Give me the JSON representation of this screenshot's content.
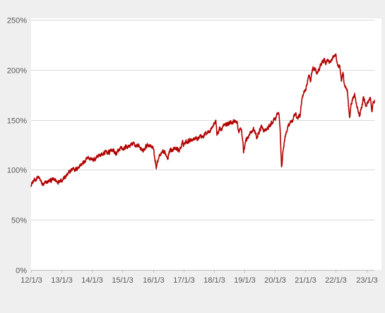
{
  "chart_data": {
    "type": "line",
    "title": "",
    "xlabel": "",
    "ylabel": "",
    "ylim": [
      0,
      250
    ],
    "yticks": [
      0,
      50,
      100,
      150,
      200,
      250
    ],
    "ytick_labels": [
      "0%",
      "50%",
      "100%",
      "150%",
      "200%",
      "250%"
    ],
    "xticks": [
      "2012-01-03",
      "2013-01-03",
      "2014-01-03",
      "2015-01-03",
      "2016-01-03",
      "2017-01-03",
      "2018-01-03",
      "2019-01-03",
      "2020-01-03",
      "2021-01-03",
      "2022-01-03",
      "2023-01-03"
    ],
    "xtick_labels": [
      "12/1/3",
      "13/1/3",
      "14/1/3",
      "15/1/3",
      "16/1/3",
      "17/1/3",
      "18/1/3",
      "19/1/3",
      "20/1/3",
      "21/1/3",
      "22/1/3",
      "23/1/3"
    ],
    "xlim": [
      "2012-01-03",
      "2023-04-10"
    ],
    "grid": "horizontal",
    "legend": "none",
    "line_color": "#b20000",
    "grid_color": "#d9d9d9",
    "series": [
      {
        "x": [
          "2012-01-03",
          "2012-02-15",
          "2012-03-20",
          "2012-04-20",
          "2012-05-10",
          "2012-06-05",
          "2012-07-15",
          "2012-08-20",
          "2012-09-15",
          "2012-10-20",
          "2012-11-15",
          "2012-12-20",
          "2013-01-03",
          "2013-02-20",
          "2013-03-25",
          "2013-04-25",
          "2013-05-25",
          "2013-06-25",
          "2013-08-01",
          "2013-09-10",
          "2013-10-20",
          "2013-11-25",
          "2014-01-03",
          "2014-02-05",
          "2014-03-10",
          "2014-04-15",
          "2014-05-20",
          "2014-06-25",
          "2014-07-31",
          "2014-08-05",
          "2014-09-10",
          "2014-10-15",
          "2014-11-20",
          "2014-12-20",
          "2015-01-03",
          "2015-02-10",
          "2015-03-15",
          "2015-04-20",
          "2015-05-20",
          "2015-06-20",
          "2015-07-20",
          "2015-08-24",
          "2015-09-15",
          "2015-10-20",
          "2015-11-20",
          "2015-12-20",
          "2016-01-03",
          "2016-01-20",
          "2016-02-11",
          "2016-03-15",
          "2016-04-20",
          "2016-05-25",
          "2016-06-27",
          "2016-07-20",
          "2016-08-20",
          "2016-09-20",
          "2016-10-20",
          "2016-11-10",
          "2016-12-20",
          "2017-01-03",
          "2017-02-15",
          "2017-03-20",
          "2017-04-20",
          "2017-05-25",
          "2017-06-25",
          "2017-07-25",
          "2017-08-25",
          "2017-09-25",
          "2017-10-25",
          "2017-11-25",
          "2017-12-25",
          "2018-01-26",
          "2018-02-08",
          "2018-03-10",
          "2018-03-25",
          "2018-04-20",
          "2018-05-20",
          "2018-06-20",
          "2018-07-20",
          "2018-08-20",
          "2018-09-20",
          "2018-10-10",
          "2018-10-25",
          "2018-11-15",
          "2018-12-01",
          "2018-12-24",
          "2019-01-15",
          "2019-02-15",
          "2019-03-15",
          "2019-04-25",
          "2019-05-30",
          "2019-06-25",
          "2019-07-25",
          "2019-08-25",
          "2019-09-25",
          "2019-10-25",
          "2019-11-25",
          "2019-12-20",
          "2020-01-03",
          "2020-01-25",
          "2020-02-19",
          "2020-03-05",
          "2020-03-23",
          "2020-04-10",
          "2020-04-30",
          "2020-05-20",
          "2020-06-08",
          "2020-07-10",
          "2020-08-10",
          "2020-09-02",
          "2020-09-25",
          "2020-10-15",
          "2020-10-30",
          "2020-11-20",
          "2020-12-20",
          "2021-01-03",
          "2021-01-20",
          "2021-02-15",
          "2021-03-08",
          "2021-03-25",
          "2021-04-25",
          "2021-05-20",
          "2021-06-20",
          "2021-07-20",
          "2021-08-20",
          "2021-09-05",
          "2021-09-30",
          "2021-10-20",
          "2021-11-20",
          "2021-12-01",
          "2021-12-20",
          "2022-01-03",
          "2022-01-25",
          "2022-02-20",
          "2022-03-10",
          "2022-03-29",
          "2022-04-20",
          "2022-05-20",
          "2022-06-16",
          "2022-07-10",
          "2022-08-16",
          "2022-09-10",
          "2022-09-30",
          "2022-10-13",
          "2022-11-10",
          "2022-11-30",
          "2022-12-15",
          "2023-01-03",
          "2023-02-02",
          "2023-02-20",
          "2023-03-13",
          "2023-03-25",
          "2023-04-10"
        ],
        "y": [
          86,
          89,
          93,
          90,
          86,
          85,
          88,
          89,
          90,
          90,
          88,
          91,
          90,
          93,
          96,
          99,
          102,
          100,
          104,
          106,
          109,
          112,
          111,
          110,
          114,
          115,
          116,
          118,
          117,
          119,
          120,
          116,
          119,
          121,
          120,
          122,
          123,
          125,
          126,
          124,
          125,
          118,
          119,
          124,
          125,
          124,
          123,
          114,
          103,
          113,
          116,
          117,
          113,
          119,
          121,
          120,
          121,
          119,
          126,
          126,
          129,
          130,
          131,
          132,
          132,
          134,
          134,
          136,
          139,
          141,
          144,
          150,
          135,
          141,
          140,
          143,
          145,
          146,
          147,
          148,
          149,
          147,
          137,
          141,
          139,
          118,
          128,
          134,
          138,
          141,
          132,
          138,
          143,
          139,
          140,
          143,
          146,
          150,
          151,
          153,
          158,
          140,
          104,
          118,
          130,
          138,
          144,
          148,
          150,
          155,
          151,
          155,
          152,
          170,
          178,
          178,
          186,
          195,
          190,
          200,
          202,
          197,
          203,
          208,
          210,
          207,
          212,
          208,
          211,
          214,
          213,
          215,
          205,
          203,
          187,
          195,
          182,
          180,
          153,
          167,
          175,
          165,
          158,
          153,
          163,
          172,
          168,
          163,
          170,
          172,
          159,
          165,
          170
        ]
      }
    ]
  }
}
